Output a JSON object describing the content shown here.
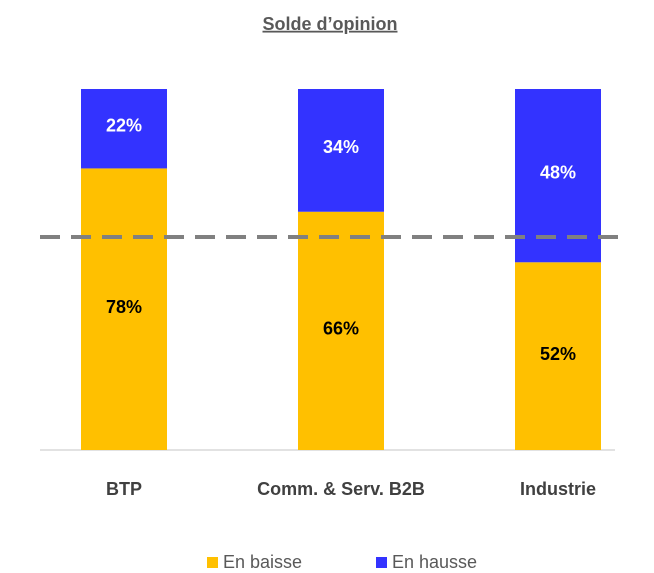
{
  "chart_data": {
    "type": "stacked_bar",
    "title": "Solde d’opinion",
    "categories": [
      "BTP",
      "Comm. & Serv. B2B",
      "Industrie"
    ],
    "series": [
      {
        "name": "En baisse",
        "color": "#FFC000",
        "values": [
          78,
          66,
          52
        ],
        "value_labels": [
          "78%",
          "66%",
          "52%"
        ]
      },
      {
        "name": "En hausse",
        "color": "#3333FF",
        "values": [
          22,
          34,
          48
        ],
        "value_labels": [
          "22%",
          "34%",
          "48%"
        ]
      }
    ],
    "ylim": [
      0,
      100
    ],
    "reference_line": {
      "value": 59,
      "color": "#808080",
      "style": "dashed"
    },
    "legend": "bottom"
  }
}
